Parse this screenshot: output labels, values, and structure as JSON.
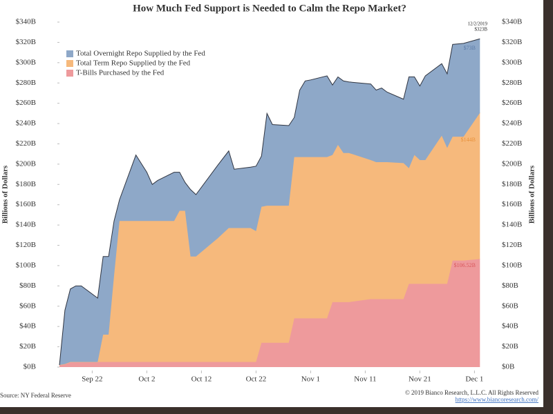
{
  "chart_data": {
    "type": "stacked-area",
    "title": "How Much Fed Support is Needed to Calm the Repo Market?",
    "ylabel": "Billions of Dollars",
    "y2label": "Billions of Dollars",
    "source": "Source: NY Federal Reserve",
    "copyright": "© 2019 Bianco Research, L.L.C. All Rights Reserved",
    "url": "https://www.biancoresearch.com/",
    "annotations": [
      "12/2/2019",
      "$323B",
      "$73B",
      "$144B",
      "$106.52B"
    ],
    "legend": "upper left",
    "x": [
      "Sep 16",
      "Sep 17",
      "Sep 18",
      "Sep 19",
      "Sep 20",
      "Sep 23",
      "Sep 24",
      "Sep 25",
      "Sep 26",
      "Sep 27",
      "Sep 30",
      "Oct 2",
      "Oct 3",
      "Oct 4",
      "Oct 7",
      "Oct 8",
      "Oct 9",
      "Oct 10",
      "Oct 11",
      "Oct 15",
      "Oct 17",
      "Oct 18",
      "Oct 21",
      "Oct 22",
      "Oct 23",
      "Oct 24",
      "Oct 25",
      "Oct 28",
      "Oct 29",
      "Oct 30",
      "Oct 31",
      "Nov 1",
      "Nov 4",
      "Nov 5",
      "Nov 6",
      "Nov 7",
      "Nov 8",
      "Nov 12",
      "Nov 13",
      "Nov 14",
      "Nov 15",
      "Nov 18",
      "Nov 19",
      "Nov 20",
      "Nov 21",
      "Nov 22",
      "Nov 25",
      "Nov 26",
      "Nov 27",
      "Nov 29",
      "Dec 2"
    ],
    "xlim": [
      "Sep 16",
      "Dec 5"
    ],
    "xticks": [
      "Sep 22",
      "Oct 2",
      "Oct 12",
      "Oct 22",
      "Nov 1",
      "Nov 11",
      "Nov 21",
      "Dec 1"
    ],
    "series": [
      {
        "name": "T-Bills Purchased by the Fed",
        "color": "#ee9a9c",
        "values": [
          2,
          3,
          5,
          5,
          5,
          5,
          5,
          5,
          5,
          5,
          5,
          5,
          5,
          5,
          5,
          5,
          5,
          5,
          5,
          5,
          5,
          5,
          5,
          5,
          24,
          24,
          24,
          24,
          48,
          48,
          48,
          48,
          48,
          64,
          64,
          64,
          64,
          67,
          67,
          67,
          67,
          67,
          82,
          82,
          82,
          82,
          82,
          82,
          105,
          105,
          106.52
        ]
      },
      {
        "name": "Total Term Repo Supplied by the Fed",
        "color": "#f6b97c",
        "values": [
          0,
          0,
          0,
          0,
          0,
          0,
          27,
          27,
          85,
          139,
          139,
          139,
          139,
          139,
          139,
          149,
          149,
          104,
          104,
          122,
          132,
          132,
          132,
          129,
          134,
          135,
          135,
          135,
          159,
          159,
          159,
          159,
          159,
          145,
          155,
          147,
          147,
          137,
          135,
          135,
          135,
          134,
          114,
          127,
          122,
          122,
          146,
          134,
          122,
          122,
          144
        ]
      },
      {
        "name": "Total Overnight Repo Supplied by the Fed",
        "color": "#8ea8c8",
        "values": [
          0,
          53,
          72,
          75,
          75,
          63,
          77,
          77,
          54,
          21,
          65,
          48,
          36,
          40,
          48,
          38,
          28,
          66,
          61,
          72,
          76,
          58,
          60,
          64,
          50,
          91,
          80,
          79,
          39,
          66,
          75,
          76,
          80,
          69,
          67,
          71,
          70,
          75,
          71,
          73,
          69,
          63,
          90,
          77,
          73,
          83,
          71,
          73,
          91,
          92,
          73
        ]
      }
    ],
    "ylim": [
      0,
      340
    ],
    "yticks": [
      {
        "value": 0,
        "label": "$0B"
      },
      {
        "value": 20,
        "label": "$20B"
      },
      {
        "value": 40,
        "label": "$40B"
      },
      {
        "value": 60,
        "label": "$60B"
      },
      {
        "value": 80,
        "label": "$80B"
      },
      {
        "value": 100,
        "label": "$100B"
      },
      {
        "value": 120,
        "label": "$120B"
      },
      {
        "value": 140,
        "label": "$140B"
      },
      {
        "value": 160,
        "label": "$160B"
      },
      {
        "value": 180,
        "label": "$180B"
      },
      {
        "value": 200,
        "label": "$200B"
      },
      {
        "value": 220,
        "label": "$220B"
      },
      {
        "value": 240,
        "label": "$240B"
      },
      {
        "value": 260,
        "label": "$260B"
      },
      {
        "value": 280,
        "label": "$280B"
      },
      {
        "value": 300,
        "label": "$300B"
      },
      {
        "value": 320,
        "label": "$320B"
      },
      {
        "value": 340,
        "label": "$340B"
      }
    ]
  }
}
